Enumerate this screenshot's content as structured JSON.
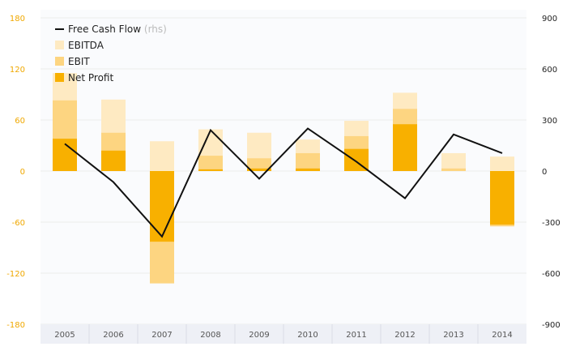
{
  "chart_data": {
    "type": "bar",
    "categories": [
      "2005",
      "2006",
      "2007",
      "2008",
      "2009",
      "2010",
      "2011",
      "2012",
      "2013",
      "2014"
    ],
    "series": [
      {
        "name": "EBITDA",
        "kind": "bar",
        "color": "#feeac2",
        "values": [
          115,
          84,
          35,
          49,
          45,
          37,
          59,
          92,
          21,
          17
        ]
      },
      {
        "name": "EBIT",
        "kind": "bar",
        "color": "#fdd581",
        "values": [
          83,
          45,
          -132,
          18,
          15,
          21,
          41,
          73,
          3,
          -65
        ]
      },
      {
        "name": "Net Profit",
        "kind": "bar",
        "color": "#f8b000",
        "values": [
          38,
          24,
          -83,
          2,
          3,
          3,
          26,
          55,
          0,
          -63
        ]
      },
      {
        "name": "Free Cash Flow",
        "subtitle": "(rhs)",
        "kind": "line",
        "axis": "right",
        "color": "#111111",
        "values": [
          160,
          -65,
          -385,
          240,
          -45,
          250,
          55,
          -160,
          215,
          105
        ]
      }
    ],
    "yleft": {
      "ticks": [
        "180",
        "120",
        "60",
        "0",
        "-60",
        "-120",
        "-180"
      ],
      "ylim": [
        -180,
        180
      ]
    },
    "yright": {
      "ticks": [
        "900",
        "600",
        "300",
        "0",
        "-300",
        "-600",
        "-900"
      ],
      "ylim": [
        -900,
        900
      ]
    },
    "grid": true,
    "legend": "top-left",
    "colors": {
      "left_axis": "#f0a800",
      "grid": "#ececec",
      "plot_bg": "#fafbfd",
      "xband": "#eef0f6"
    }
  }
}
